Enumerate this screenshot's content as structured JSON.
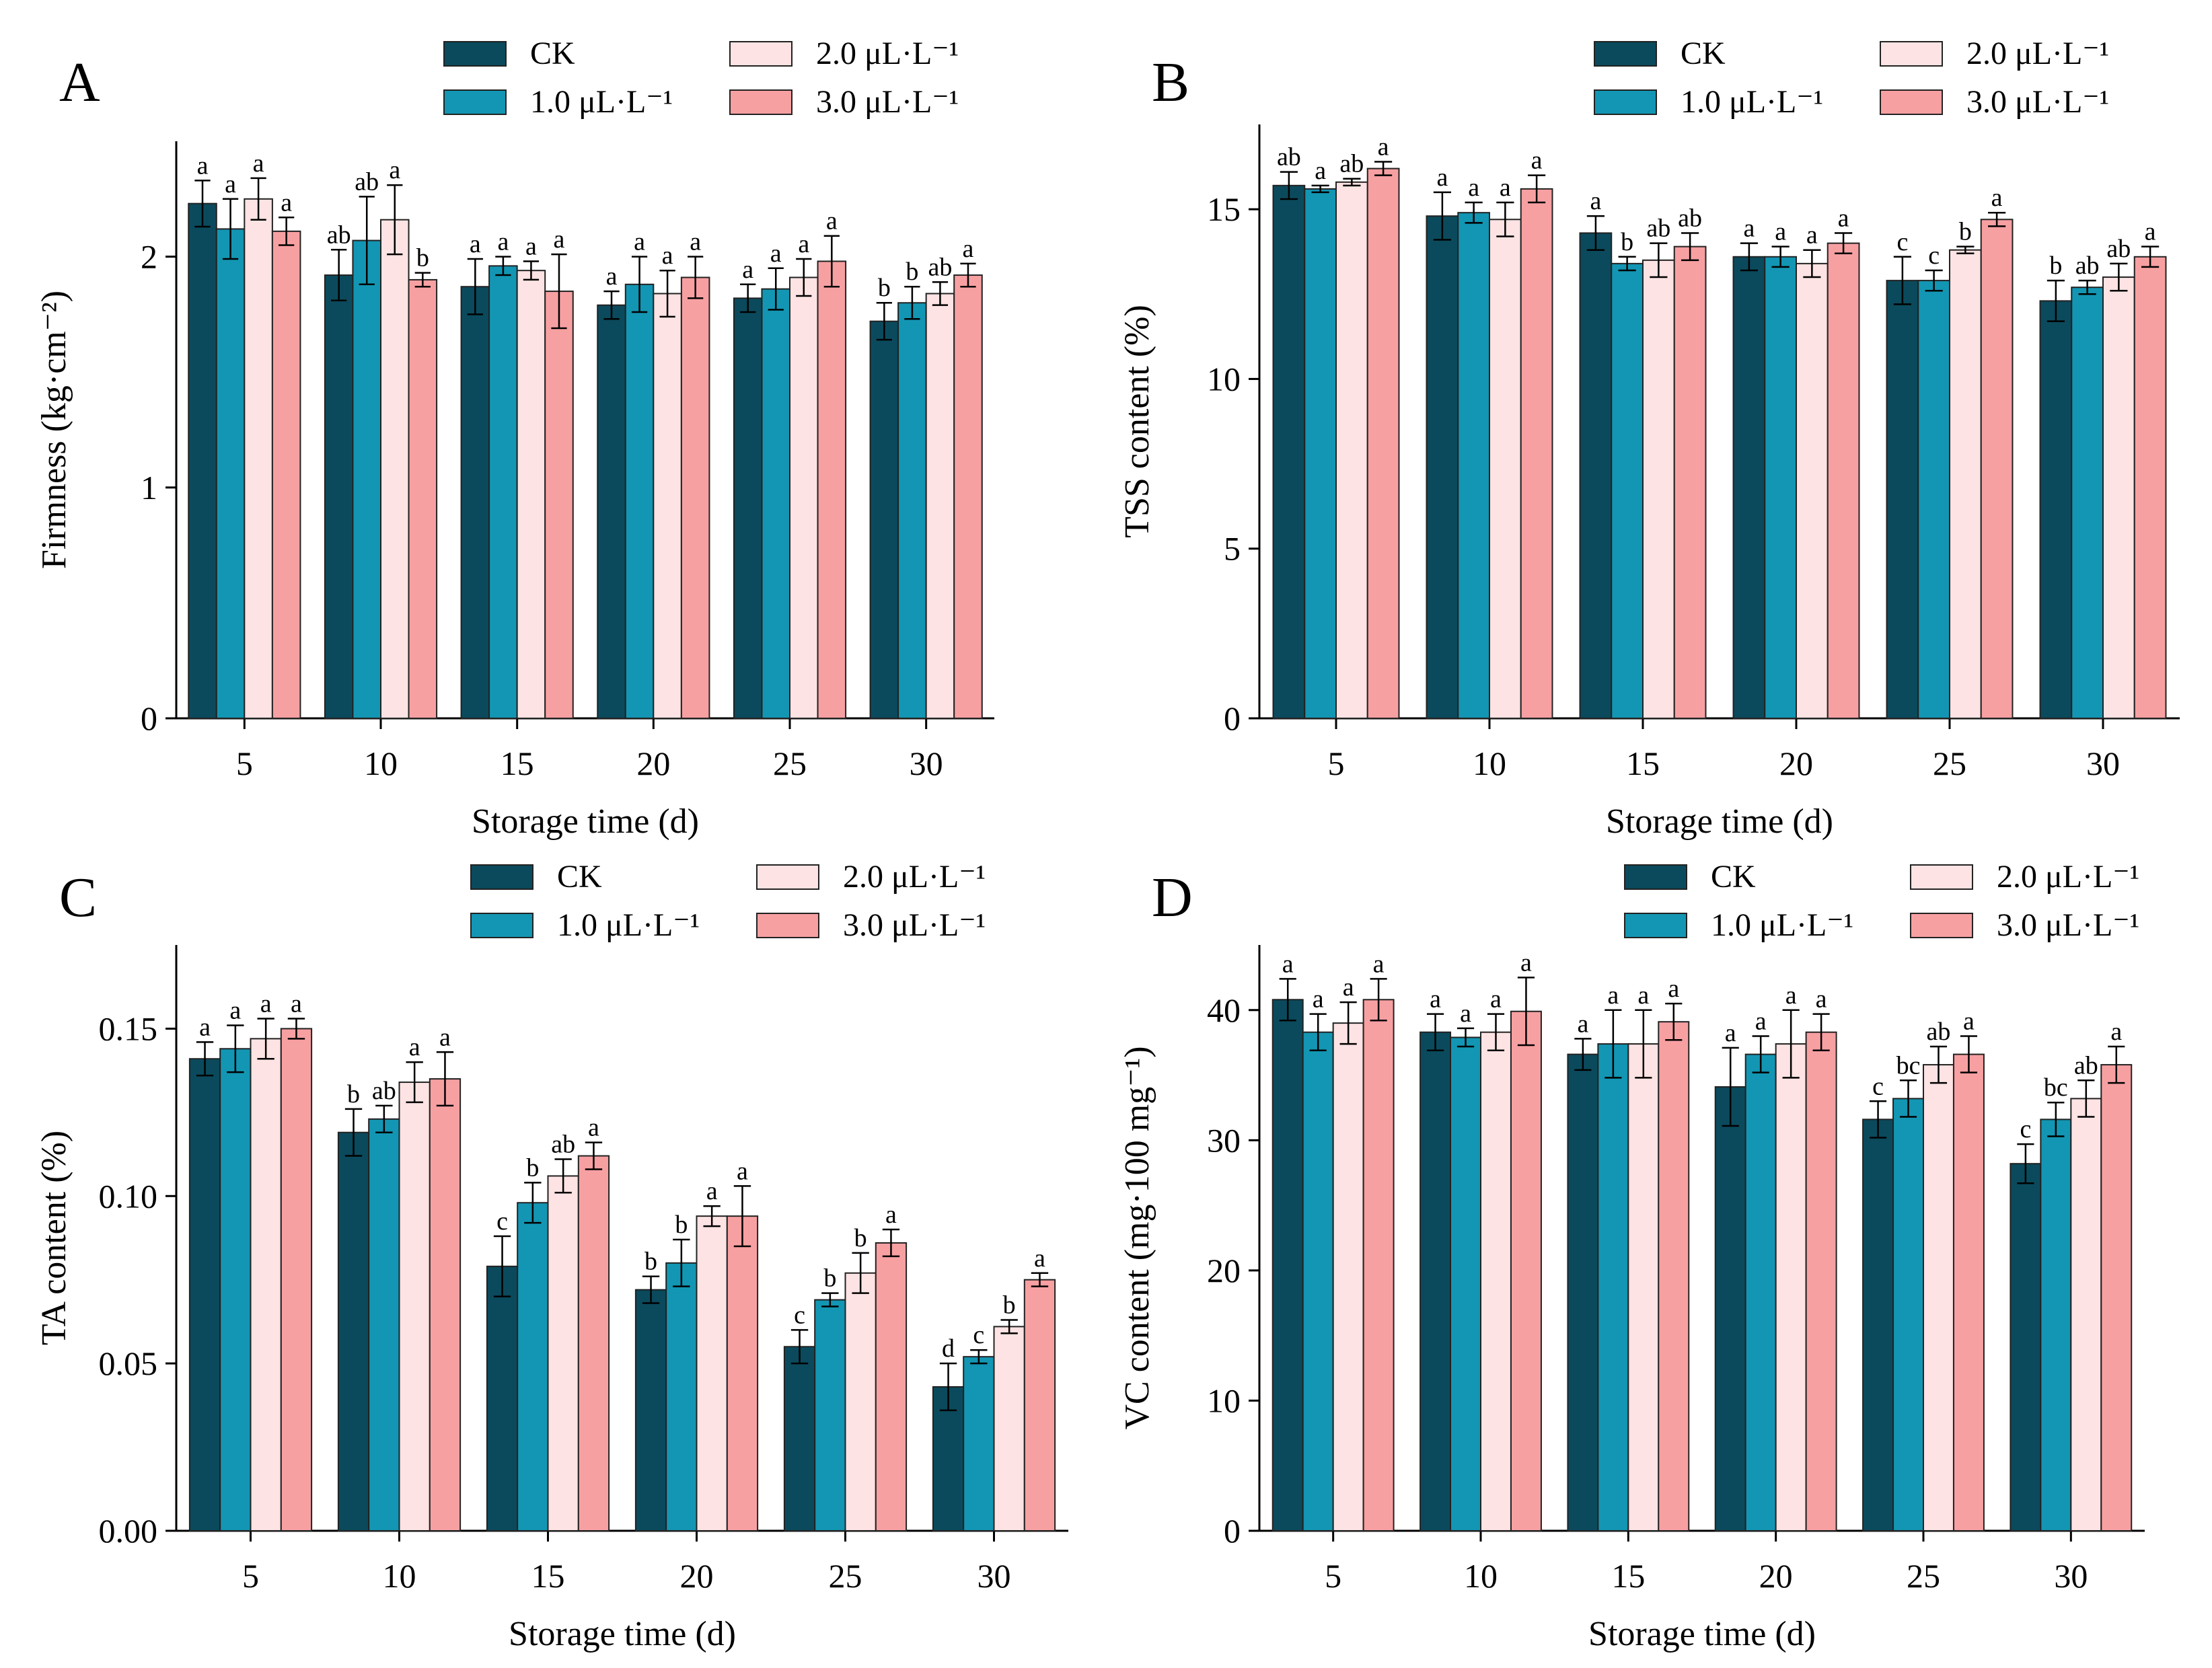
{
  "figure": {
    "legend_labels": [
      "CK",
      "1.0 μL·L⁻¹",
      "2.0 μL·L⁻¹",
      "3.0 μL·L⁻¹"
    ],
    "series_colors": [
      "#0b4a5c",
      "#1396b3",
      "#fde3e3",
      "#f7a0a2"
    ]
  },
  "chart_data": [
    {
      "type": "bar",
      "panel": "A",
      "title": "",
      "xlabel": "Storage time (d)",
      "ylabel": "Firmness (kg·cm⁻²)",
      "categories": [
        "5",
        "10",
        "15",
        "20",
        "25",
        "30"
      ],
      "ylim": [
        0,
        2.5
      ],
      "yticks": [
        0,
        1,
        2
      ],
      "ytick_labels": [
        "0",
        "1",
        "2"
      ],
      "series": [
        {
          "name": "CK",
          "values": [
            2.23,
            1.92,
            1.87,
            1.79,
            1.82,
            1.72
          ],
          "errors": [
            0.1,
            0.11,
            0.12,
            0.06,
            0.06,
            0.08
          ],
          "letters": [
            "a",
            "ab",
            "a",
            "a",
            "a",
            "b"
          ]
        },
        {
          "name": "1.0 μL·L⁻¹",
          "values": [
            2.12,
            2.07,
            1.96,
            1.88,
            1.86,
            1.8
          ],
          "errors": [
            0.13,
            0.19,
            0.04,
            0.12,
            0.09,
            0.07
          ],
          "letters": [
            "a",
            "ab",
            "a",
            "a",
            "a",
            "b"
          ]
        },
        {
          "name": "2.0 μL·L⁻¹",
          "values": [
            2.25,
            2.16,
            1.94,
            1.84,
            1.91,
            1.84
          ],
          "errors": [
            0.09,
            0.15,
            0.04,
            0.1,
            0.08,
            0.05
          ],
          "letters": [
            "a",
            "a",
            "a",
            "a",
            "a",
            "ab"
          ]
        },
        {
          "name": "3.0 μL·L⁻¹",
          "values": [
            2.11,
            1.9,
            1.85,
            1.91,
            1.98,
            1.92
          ],
          "errors": [
            0.06,
            0.03,
            0.16,
            0.09,
            0.11,
            0.05
          ],
          "letters": [
            "a",
            "b",
            "a",
            "a",
            "a",
            "a"
          ]
        }
      ]
    },
    {
      "type": "bar",
      "panel": "B",
      "title": "",
      "xlabel": "Storage time (d)",
      "ylabel": "TSS content (%)",
      "categories": [
        "5",
        "10",
        "15",
        "20",
        "25",
        "30"
      ],
      "ylim": [
        0,
        17.5
      ],
      "yticks": [
        0,
        5,
        10,
        15
      ],
      "ytick_labels": [
        "0",
        "5",
        "10",
        "15"
      ],
      "series": [
        {
          "name": "CK",
          "values": [
            15.7,
            14.8,
            14.3,
            13.6,
            12.9,
            12.3
          ],
          "errors": [
            0.4,
            0.7,
            0.5,
            0.4,
            0.7,
            0.6
          ],
          "letters": [
            "ab",
            "a",
            "a",
            "a",
            "c",
            "b"
          ]
        },
        {
          "name": "1.0 μL·L⁻¹",
          "values": [
            15.6,
            14.9,
            13.4,
            13.6,
            12.9,
            12.7
          ],
          "errors": [
            0.1,
            0.3,
            0.2,
            0.3,
            0.3,
            0.2
          ],
          "letters": [
            "a",
            "a",
            "b",
            "a",
            "c",
            "ab"
          ]
        },
        {
          "name": "2.0 μL·L⁻¹",
          "values": [
            15.8,
            14.7,
            13.5,
            13.4,
            13.8,
            13.0
          ],
          "errors": [
            0.1,
            0.5,
            0.5,
            0.4,
            0.1,
            0.4
          ],
          "letters": [
            "ab",
            "a",
            "ab",
            "a",
            "b",
            "ab"
          ]
        },
        {
          "name": "3.0 μL·L⁻¹",
          "values": [
            16.2,
            15.6,
            13.9,
            14.0,
            14.7,
            13.6
          ],
          "errors": [
            0.2,
            0.4,
            0.4,
            0.3,
            0.2,
            0.3
          ],
          "letters": [
            "a",
            "a",
            "ab",
            "a",
            "a",
            "a"
          ]
        }
      ]
    },
    {
      "type": "bar",
      "panel": "C",
      "title": "",
      "xlabel": "Storage time (d)",
      "ylabel": "TA content (%)",
      "categories": [
        "5",
        "10",
        "15",
        "20",
        "25",
        "30"
      ],
      "ylim": [
        0,
        0.175
      ],
      "yticks": [
        0,
        0.05,
        0.1,
        0.15
      ],
      "ytick_labels": [
        "0.00",
        "0.05",
        "0.10",
        "0.15"
      ],
      "series": [
        {
          "name": "CK",
          "values": [
            0.141,
            0.119,
            0.079,
            0.072,
            0.055,
            0.043
          ],
          "errors": [
            0.005,
            0.007,
            0.009,
            0.004,
            0.005,
            0.007
          ],
          "letters": [
            "a",
            "b",
            "c",
            "b",
            "c",
            "d"
          ]
        },
        {
          "name": "1.0 μL·L⁻¹",
          "values": [
            0.144,
            0.123,
            0.098,
            0.08,
            0.069,
            0.052
          ],
          "errors": [
            0.007,
            0.004,
            0.006,
            0.007,
            0.002,
            0.002
          ],
          "letters": [
            "a",
            "ab",
            "b",
            "b",
            "b",
            "c"
          ]
        },
        {
          "name": "2.0 μL·L⁻¹",
          "values": [
            0.147,
            0.134,
            0.106,
            0.094,
            0.077,
            0.061
          ],
          "errors": [
            0.006,
            0.006,
            0.005,
            0.003,
            0.006,
            0.002
          ],
          "letters": [
            "a",
            "a",
            "ab",
            "a",
            "b",
            "b"
          ]
        },
        {
          "name": "3.0 μL·L⁻¹",
          "values": [
            0.15,
            0.135,
            0.112,
            0.094,
            0.086,
            0.075
          ],
          "errors": [
            0.003,
            0.008,
            0.004,
            0.009,
            0.004,
            0.002
          ],
          "letters": [
            "a",
            "a",
            "a",
            "a",
            "a",
            "a"
          ]
        }
      ]
    },
    {
      "type": "bar",
      "panel": "D",
      "title": "",
      "xlabel": "Storage time (d)",
      "ylabel": "VC content (mg·100 mg⁻¹)",
      "categories": [
        "5",
        "10",
        "15",
        "20",
        "25",
        "30"
      ],
      "ylim": [
        0,
        45
      ],
      "yticks": [
        0,
        10,
        20,
        30,
        40
      ],
      "ytick_labels": [
        "0",
        "10",
        "20",
        "30",
        "40"
      ],
      "series": [
        {
          "name": "CK",
          "values": [
            40.8,
            38.3,
            36.6,
            34.1,
            31.6,
            28.2
          ],
          "errors": [
            1.6,
            1.4,
            1.2,
            3.0,
            1.4,
            1.5
          ],
          "letters": [
            "a",
            "a",
            "a",
            "a",
            "c",
            "c"
          ]
        },
        {
          "name": "1.0 μL·L⁻¹",
          "values": [
            38.3,
            37.9,
            37.4,
            36.6,
            33.2,
            31.6
          ],
          "errors": [
            1.4,
            0.7,
            2.6,
            1.4,
            1.4,
            1.3
          ],
          "letters": [
            "a",
            "a",
            "a",
            "a",
            "bc",
            "bc"
          ]
        },
        {
          "name": "2.0 μL·L⁻¹",
          "values": [
            39.0,
            38.3,
            37.4,
            37.4,
            35.8,
            33.2
          ],
          "errors": [
            1.6,
            1.4,
            2.6,
            2.6,
            1.4,
            1.4
          ],
          "letters": [
            "a",
            "a",
            "a",
            "a",
            "ab",
            "ab"
          ]
        },
        {
          "name": "3.0 μL·L⁻¹",
          "values": [
            40.8,
            39.9,
            39.1,
            38.3,
            36.6,
            35.8
          ],
          "errors": [
            1.6,
            2.6,
            1.4,
            1.4,
            1.4,
            1.4
          ],
          "letters": [
            "a",
            "a",
            "a",
            "a",
            "a",
            "a"
          ]
        }
      ]
    }
  ]
}
